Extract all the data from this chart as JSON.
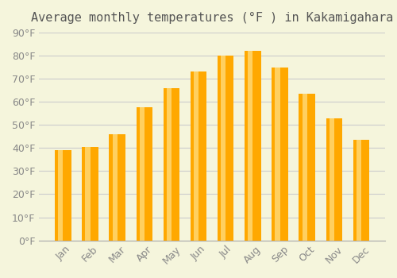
{
  "title": "Average monthly temperatures (°F ) in Kakamigahara",
  "months": [
    "Jan",
    "Feb",
    "Mar",
    "Apr",
    "May",
    "Jun",
    "Jul",
    "Aug",
    "Sep",
    "Oct",
    "Nov",
    "Dec"
  ],
  "values": [
    39,
    40.5,
    46,
    57.5,
    66,
    73,
    80,
    82,
    75,
    63.5,
    53,
    43.5
  ],
  "bar_color_main": "#FFA800",
  "bar_color_light": "#FFD060",
  "background_color": "#F5F5DC",
  "grid_color": "#CCCCCC",
  "ylim": [
    0,
    90
  ],
  "yticks": [
    0,
    10,
    20,
    30,
    40,
    50,
    60,
    70,
    80,
    90
  ],
  "title_fontsize": 11,
  "tick_fontsize": 9
}
